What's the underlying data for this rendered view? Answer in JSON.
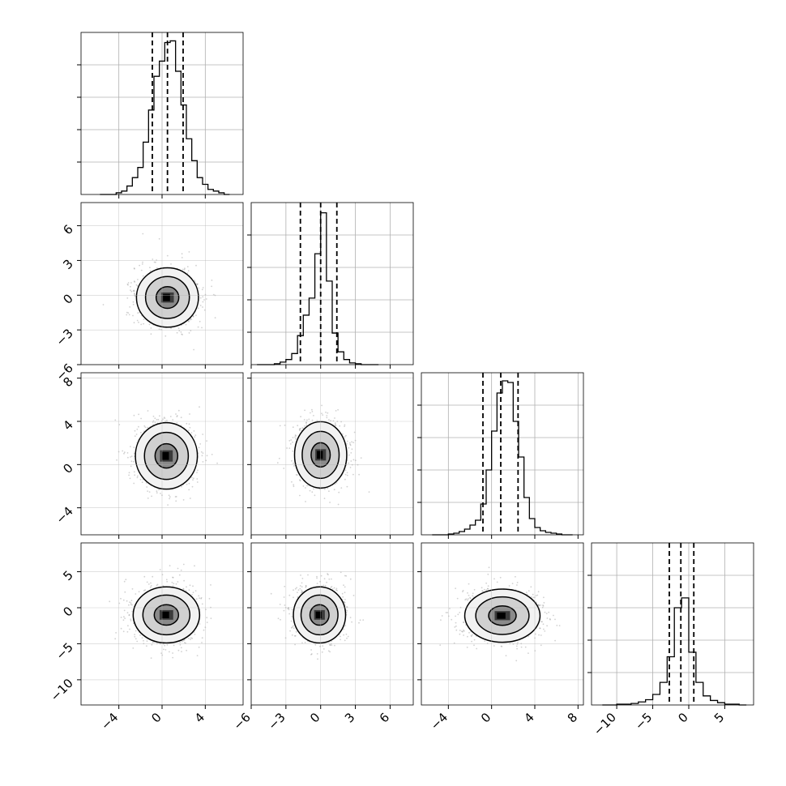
{
  "chart_data": {
    "type": "corner",
    "n_params": 4,
    "grid": true,
    "colors": {
      "hist": "#000000",
      "quantile": "#000000",
      "scatter": "#7a7a7a",
      "grid": "#b0b0b0",
      "density_dark": "#000000"
    },
    "ranges": [
      [
        -7.5,
        7.5
      ],
      [
        -6,
        8
      ],
      [
        -6.5,
        8.5
      ],
      [
        -13.5,
        9
      ]
    ],
    "ticks": [
      [
        -4,
        0,
        4
      ],
      [
        -6,
        -3,
        0,
        3,
        6
      ],
      [
        -4,
        0,
        4,
        8
      ],
      [
        -10,
        -5,
        0,
        5
      ]
    ],
    "tick_labels": [
      [
        "−4",
        "0",
        "4"
      ],
      [
        "−6",
        "−3",
        "0",
        "3",
        "6"
      ],
      [
        "−4",
        "0",
        "4",
        "8"
      ],
      [
        "−10",
        "−5",
        "0",
        "5"
      ]
    ],
    "histograms": [
      {
        "bins": [
          -5.75,
          -5.25,
          -4.75,
          -4.25,
          -3.75,
          -3.25,
          -2.75,
          -2.25,
          -1.75,
          -1.25,
          -0.75,
          -0.25,
          0.25,
          0.75,
          1.25,
          1.75,
          2.25,
          2.75,
          3.25,
          3.75,
          4.25,
          4.75,
          5.25,
          5.75,
          6.25
        ],
        "counts": [
          0,
          0,
          0,
          1,
          2,
          5,
          10,
          16,
          31,
          50,
          70,
          79,
          90,
          91,
          73,
          53,
          33,
          20,
          10,
          6,
          3,
          2,
          1,
          0,
          0
        ],
        "ymax": 96,
        "quantiles": [
          -0.9,
          0.5,
          1.95
        ]
      },
      {
        "bins": [
          -5.5,
          -5.0,
          -4.5,
          -4.0,
          -3.5,
          -3.0,
          -2.5,
          -2.0,
          -1.5,
          -1.0,
          -0.5,
          0.0,
          0.5,
          1.0,
          1.5,
          2.0,
          2.5,
          3.0,
          3.5,
          4.0,
          4.5,
          5.0
        ],
        "counts": [
          0,
          0,
          0,
          1,
          3,
          6,
          13,
          34,
          58,
          78,
          130,
          178,
          98,
          37,
          15,
          6,
          2,
          1,
          0,
          0,
          0,
          0
        ],
        "ymax": 190,
        "quantiles": [
          -1.75,
          0.0,
          1.4
        ]
      },
      {
        "bins": [
          -5.5,
          -5.0,
          -4.5,
          -4.0,
          -3.5,
          -3.0,
          -2.5,
          -2.0,
          -1.5,
          -1.0,
          -0.5,
          0.0,
          0.5,
          1.0,
          1.5,
          2.0,
          2.5,
          3.0,
          3.5,
          4.0,
          4.5,
          5.0,
          5.5,
          6.0,
          6.5,
          7.0,
          7.5
        ],
        "counts": [
          0,
          0,
          0,
          1,
          2,
          4,
          7,
          12,
          18,
          38,
          80,
          128,
          175,
          190,
          188,
          140,
          96,
          46,
          20,
          9,
          5,
          3,
          2,
          1,
          0,
          0,
          0
        ],
        "ymax": 200,
        "quantiles": [
          -0.8,
          0.85,
          2.45
        ]
      },
      {
        "bins": [
          -12.0,
          -11.0,
          -10.0,
          -9.0,
          -8.0,
          -7.0,
          -6.0,
          -5.0,
          -4.0,
          -3.0,
          -2.0,
          -1.0,
          0.0,
          1.0,
          2.0,
          3.0,
          4.0,
          5.0,
          6.0,
          7.0,
          8.0
        ],
        "counts": [
          0,
          0,
          1,
          1,
          2,
          4,
          7,
          14,
          30,
          64,
          129,
          142,
          70,
          30,
          12,
          6,
          3,
          1,
          1,
          0,
          0
        ],
        "ymax": 215,
        "quantiles": [
          -2.7,
          -1.1,
          0.7
        ]
      }
    ],
    "pairs": [
      {
        "row": 1,
        "col": 0,
        "mean": [
          0.5,
          -0.2
        ],
        "sd": [
          1.4,
          1.25
        ]
      },
      {
        "row": 2,
        "col": 0,
        "mean": [
          0.4,
          0.8
        ],
        "sd": [
          1.4,
          1.5
        ]
      },
      {
        "row": 2,
        "col": 1,
        "mean": [
          0.0,
          0.9
        ],
        "sd": [
          1.1,
          1.5
        ]
      },
      {
        "row": 3,
        "col": 0,
        "mean": [
          0.4,
          -1.0
        ],
        "sd": [
          1.5,
          1.9
        ]
      },
      {
        "row": 3,
        "col": 1,
        "mean": [
          -0.1,
          -1.0
        ],
        "sd": [
          1.1,
          1.9
        ]
      },
      {
        "row": 3,
        "col": 2,
        "mean": [
          1.0,
          -1.1
        ],
        "sd": [
          1.7,
          1.8
        ]
      }
    ]
  }
}
